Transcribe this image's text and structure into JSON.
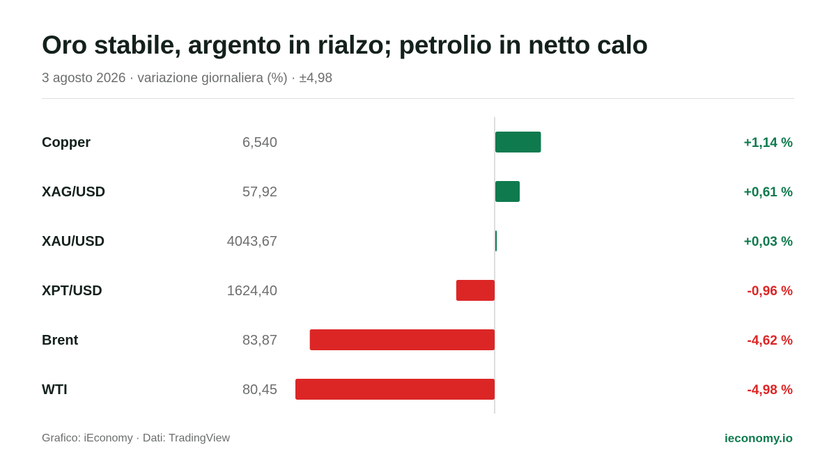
{
  "header": {
    "title": "Oro stabile, argento in rialzo; petrolio in netto calo",
    "subtitle": "3 agosto 2026 · variazione giornaliera (%) · ±4,98"
  },
  "footer": {
    "source": "Grafico: iEconomy · Dati: TradingView",
    "brand": "ieconomy.io"
  },
  "colors": {
    "positive": "#0f7a4e",
    "negative": "#dc2626",
    "text": "#14211b",
    "muted": "#6b6f6d",
    "axis": "#d4d4d4"
  },
  "chart_data": {
    "type": "bar",
    "orientation": "horizontal",
    "title": "Oro stabile, argento in rialzo; petrolio in netto calo",
    "unit": "%",
    "xlim": [
      -4.98,
      4.98
    ],
    "rows": [
      {
        "name": "Copper",
        "price": "6,540",
        "change": 1.14,
        "label": "+1,14 %"
      },
      {
        "name": "XAG/USD",
        "price": "57,92",
        "change": 0.61,
        "label": "+0,61 %"
      },
      {
        "name": "XAU/USD",
        "price": "4043,67",
        "change": 0.03,
        "label": "+0,03 %"
      },
      {
        "name": "XPT/USD",
        "price": "1624,40",
        "change": -0.96,
        "label": "-0,96 %"
      },
      {
        "name": "Brent",
        "price": "83,87",
        "change": -4.62,
        "label": "-4,62 %"
      },
      {
        "name": "WTI",
        "price": "80,45",
        "change": -4.98,
        "label": "-4,98 %"
      }
    ]
  }
}
